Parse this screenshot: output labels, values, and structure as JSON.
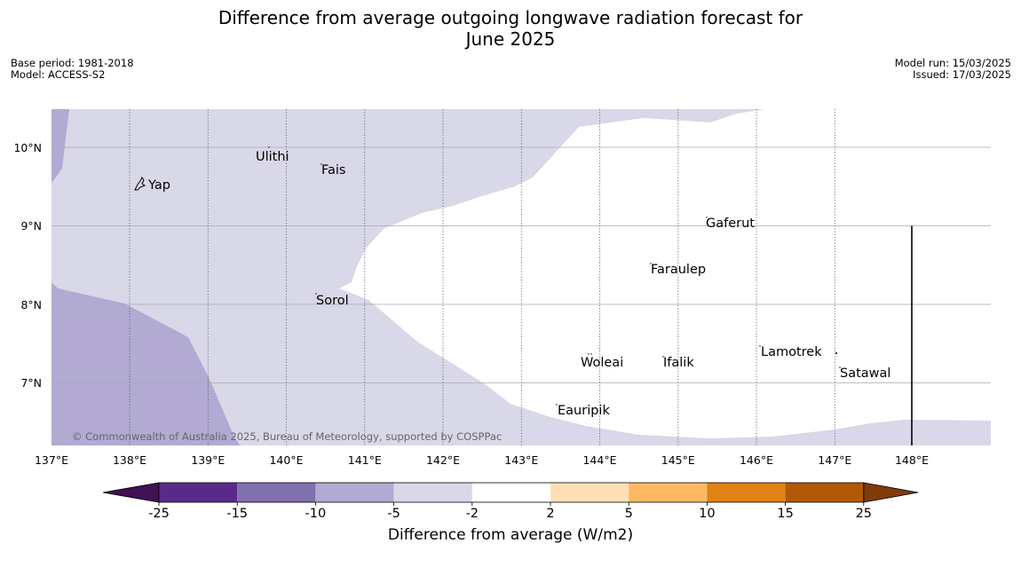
{
  "title": {
    "line1": "Difference from average outgoing longwave radiation forecast for",
    "line2": "June 2025"
  },
  "meta": {
    "base_period": "Base period: 1981-2018",
    "model": "Model: ACCESS-S2",
    "model_run": "Model run: 15/03/2025",
    "issued": "Issued: 17/03/2025"
  },
  "map": {
    "lon_labels": [
      "137°E",
      "138°E",
      "139°E",
      "140°E",
      "141°E",
      "142°E",
      "143°E",
      "144°E",
      "145°E",
      "146°E",
      "147°E",
      "148°E"
    ],
    "lat_labels": [
      "10°N",
      "9°N",
      "8°N",
      "7°N"
    ],
    "places": [
      "Ulithi",
      "Fais",
      "Yap",
      "Gaferut",
      "Faraulep",
      "Sorol",
      "Lamotrek",
      "Woleai",
      "Ifalik",
      "Satawal",
      "Eauripik"
    ],
    "copyright": "© Commonwealth of Australia 2025, Bureau of Meteorology, supported by COSPPac"
  },
  "colorbar": {
    "ticks": [
      "-25",
      "-15",
      "-10",
      "-5",
      "-2",
      "2",
      "5",
      "10",
      "15",
      "25"
    ],
    "colors": [
      "#3f1155",
      "#5a2a8a",
      "#8070ae",
      "#b2aad3",
      "#d8d8e8",
      "#ffffff",
      "#ffe0b6",
      "#fdb863",
      "#e08214",
      "#b35806",
      "#7f3b08"
    ],
    "label": "Difference from average (W/m2)"
  },
  "colors": {
    "region_light": "#d8d8e8",
    "region_medium": "#b2aad3",
    "region_white": "#ffffff"
  }
}
